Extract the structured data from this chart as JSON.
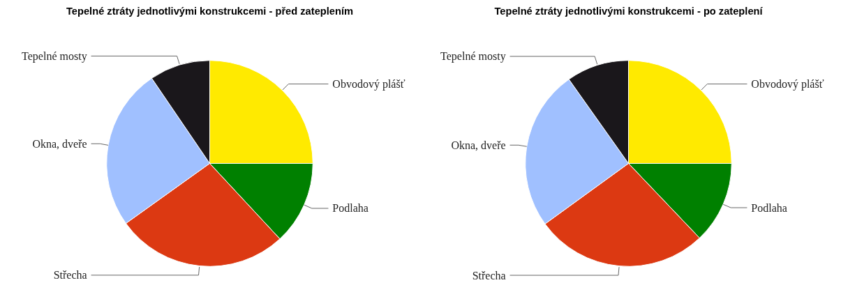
{
  "chart_data": [
    {
      "type": "pie",
      "title": "Tepelné ztráty jednotlivými konstrukcemi - před zateplením",
      "categories": [
        "Obvodový plášť",
        "Podlaha",
        "Střecha",
        "Okna, dveře",
        "Tepelné mosty"
      ],
      "values": [
        25,
        13.1,
        27,
        25.4,
        9.5
      ],
      "colors": [
        "#ffea00",
        "#008000",
        "#dc3912",
        "#a0c0ff",
        "#1a171b"
      ]
    },
    {
      "type": "pie",
      "title": "Tepelné ztráty jednotlivými konstrukcemi - po zateplení",
      "categories": [
        "Obvodový plášť",
        "Podlaha",
        "Střecha",
        "Okna, dveře",
        "Tepelné mosty"
      ],
      "values": [
        25,
        12.9,
        27.1,
        25.2,
        9.8
      ],
      "colors": [
        "#ffea00",
        "#008000",
        "#dc3912",
        "#a0c0ff",
        "#1a171b"
      ]
    }
  ]
}
